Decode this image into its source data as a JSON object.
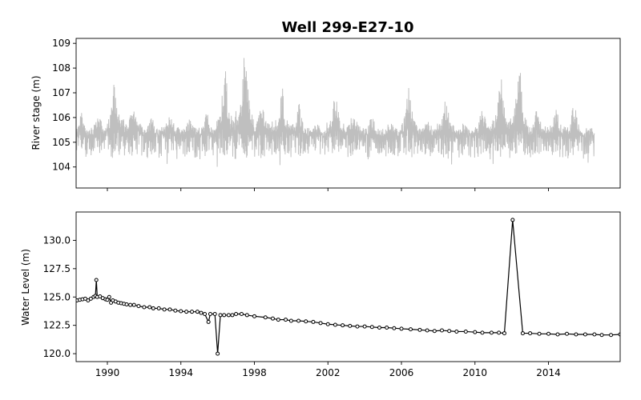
{
  "chart_data": {
    "title": "Well 299-E27-10",
    "panels": [
      {
        "type": "area",
        "ylabel": "River stage (m)",
        "color": "#bfbfbf",
        "xlim": [
          1988.3,
          2017.9
        ],
        "ylim": [
          103.15,
          109.2
        ],
        "yticks": [
          104,
          105,
          106,
          107,
          108,
          109
        ],
        "xticks": [
          1990,
          1994,
          1998,
          2002,
          2006,
          2010,
          2014
        ],
        "show_xtick_labels": false,
        "data_range": [
          1988.3,
          2016.5
        ],
        "baseline_range": [
          104.3,
          105.3
        ],
        "annual_peaks": [
          {
            "year": 1988.6,
            "max": 106.2
          },
          {
            "year": 1989.5,
            "max": 106.3
          },
          {
            "year": 1990.4,
            "max": 107.5
          },
          {
            "year": 1991.4,
            "max": 107.0
          },
          {
            "year": 1992.4,
            "max": 106.0
          },
          {
            "year": 1993.4,
            "max": 106.3
          },
          {
            "year": 1994.5,
            "max": 106.0
          },
          {
            "year": 1995.4,
            "max": 106.2
          },
          {
            "year": 1996.4,
            "max": 108.0
          },
          {
            "year": 1997.5,
            "max": 108.85
          },
          {
            "year": 1998.4,
            "max": 106.9
          },
          {
            "year": 1999.5,
            "max": 107.3
          },
          {
            "year": 2000.4,
            "max": 106.6
          },
          {
            "year": 2001.4,
            "max": 105.8
          },
          {
            "year": 2002.4,
            "max": 107.0
          },
          {
            "year": 2003.4,
            "max": 106.3
          },
          {
            "year": 2004.4,
            "max": 106.1
          },
          {
            "year": 2005.4,
            "max": 106.0
          },
          {
            "year": 2006.4,
            "max": 107.2
          },
          {
            "year": 2007.4,
            "max": 106.1
          },
          {
            "year": 2008.4,
            "max": 106.8
          },
          {
            "year": 2009.4,
            "max": 105.8
          },
          {
            "year": 2010.4,
            "max": 106.4
          },
          {
            "year": 2011.4,
            "max": 107.8
          },
          {
            "year": 2012.4,
            "max": 108.3
          },
          {
            "year": 2013.4,
            "max": 106.4
          },
          {
            "year": 2014.4,
            "max": 106.4
          },
          {
            "year": 2015.4,
            "max": 106.6
          },
          {
            "year": 2016.3,
            "max": 105.6
          }
        ]
      },
      {
        "type": "line",
        "ylabel": "Water Level (m)",
        "color": "#000000",
        "xlim": [
          1988.3,
          2017.9
        ],
        "ylim": [
          119.3,
          132.5
        ],
        "yticks": [
          120.0,
          122.5,
          125.0,
          127.5,
          130.0
        ],
        "ytick_labels": [
          "120.0",
          "122.5",
          "125.0",
          "127.5",
          "130.0"
        ],
        "xticks": [
          1990,
          1994,
          1998,
          2002,
          2006,
          2010,
          2014
        ],
        "xtick_labels": [
          "1990",
          "1994",
          "1998",
          "2002",
          "2006",
          "2010",
          "2014"
        ],
        "points": [
          [
            1988.35,
            124.7
          ],
          [
            1988.5,
            124.75
          ],
          [
            1988.65,
            124.8
          ],
          [
            1988.8,
            124.85
          ],
          [
            1988.95,
            124.7
          ],
          [
            1989.1,
            124.85
          ],
          [
            1989.25,
            125.0
          ],
          [
            1989.35,
            125.1
          ],
          [
            1989.4,
            126.5
          ],
          [
            1989.45,
            125.0
          ],
          [
            1989.6,
            125.05
          ],
          [
            1989.75,
            124.9
          ],
          [
            1989.9,
            124.8
          ],
          [
            1990.0,
            124.75
          ],
          [
            1990.1,
            125.0
          ],
          [
            1990.2,
            124.5
          ],
          [
            1990.3,
            124.7
          ],
          [
            1990.45,
            124.6
          ],
          [
            1990.6,
            124.5
          ],
          [
            1990.75,
            124.45
          ],
          [
            1990.9,
            124.4
          ],
          [
            1991.05,
            124.35
          ],
          [
            1991.25,
            124.3
          ],
          [
            1991.45,
            124.3
          ],
          [
            1991.7,
            124.2
          ],
          [
            1992.0,
            124.1
          ],
          [
            1992.3,
            124.1
          ],
          [
            1992.5,
            124.0
          ],
          [
            1992.8,
            124.0
          ],
          [
            1993.1,
            123.9
          ],
          [
            1993.4,
            123.9
          ],
          [
            1993.7,
            123.8
          ],
          [
            1994.0,
            123.75
          ],
          [
            1994.3,
            123.7
          ],
          [
            1994.6,
            123.7
          ],
          [
            1994.9,
            123.7
          ],
          [
            1995.1,
            123.6
          ],
          [
            1995.3,
            123.5
          ],
          [
            1995.5,
            122.8
          ],
          [
            1995.6,
            123.5
          ],
          [
            1995.85,
            123.5
          ],
          [
            1996.0,
            120.0
          ],
          [
            1996.15,
            123.4
          ],
          [
            1996.35,
            123.4
          ],
          [
            1996.6,
            123.4
          ],
          [
            1996.8,
            123.4
          ],
          [
            1997.0,
            123.5
          ],
          [
            1997.3,
            123.5
          ],
          [
            1997.6,
            123.4
          ],
          [
            1998.0,
            123.3
          ],
          [
            1998.6,
            123.2
          ],
          [
            1999.0,
            123.1
          ],
          [
            1999.3,
            123.0
          ],
          [
            1999.7,
            123.0
          ],
          [
            2000.0,
            122.9
          ],
          [
            2000.4,
            122.9
          ],
          [
            2000.8,
            122.85
          ],
          [
            2001.2,
            122.8
          ],
          [
            2001.6,
            122.7
          ],
          [
            2002.0,
            122.6
          ],
          [
            2002.4,
            122.55
          ],
          [
            2002.8,
            122.5
          ],
          [
            2003.2,
            122.45
          ],
          [
            2003.6,
            122.4
          ],
          [
            2004.0,
            122.4
          ],
          [
            2004.4,
            122.35
          ],
          [
            2004.8,
            122.3
          ],
          [
            2005.2,
            122.3
          ],
          [
            2005.6,
            122.25
          ],
          [
            2006.0,
            122.2
          ],
          [
            2006.5,
            122.15
          ],
          [
            2007.0,
            122.1
          ],
          [
            2007.4,
            122.05
          ],
          [
            2007.8,
            122.0
          ],
          [
            2008.2,
            122.05
          ],
          [
            2008.6,
            122.0
          ],
          [
            2009.0,
            121.95
          ],
          [
            2009.5,
            121.95
          ],
          [
            2010.0,
            121.9
          ],
          [
            2010.4,
            121.85
          ],
          [
            2010.9,
            121.85
          ],
          [
            2011.3,
            121.85
          ],
          [
            2011.6,
            121.8
          ],
          [
            2012.05,
            131.8
          ],
          [
            2012.6,
            121.8
          ],
          [
            2013.0,
            121.8
          ],
          [
            2013.5,
            121.75
          ],
          [
            2014.0,
            121.75
          ],
          [
            2014.5,
            121.7
          ],
          [
            2015.0,
            121.75
          ],
          [
            2015.5,
            121.7
          ],
          [
            2016.0,
            121.7
          ],
          [
            2016.5,
            121.7
          ],
          [
            2016.9,
            121.65
          ],
          [
            2017.4,
            121.65
          ],
          [
            2017.9,
            121.7
          ]
        ]
      }
    ]
  }
}
